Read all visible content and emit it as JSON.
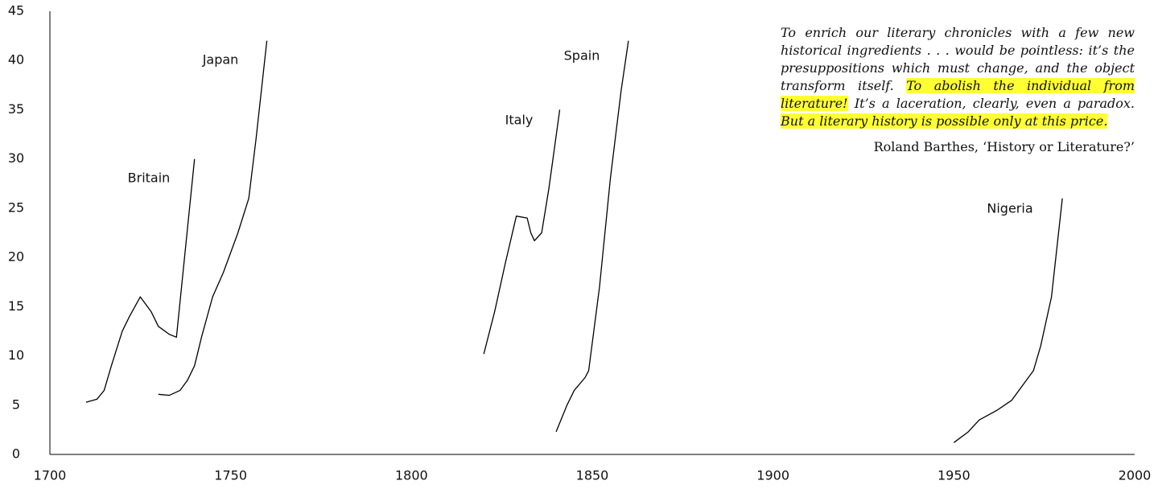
{
  "chart_data": {
    "type": "line",
    "xlim": [
      1700,
      2000
    ],
    "xticks": [
      1700,
      1750,
      1800,
      1850,
      1900,
      1950,
      2000
    ],
    "ylim": [
      0,
      45
    ],
    "yticks": [
      0,
      5,
      10,
      15,
      20,
      25,
      30,
      35,
      40,
      45
    ],
    "series": [
      {
        "name": "Britain",
        "color": "#000000",
        "x": [
          1710,
          1713,
          1715,
          1717,
          1720,
          1722,
          1725,
          1728,
          1730,
          1733,
          1735,
          1740
        ],
        "values": [
          5.3,
          5.6,
          6.5,
          9,
          12.5,
          14,
          16,
          14.5,
          13,
          12.2,
          11.9,
          30
        ]
      },
      {
        "name": "Japan",
        "color": "#000000",
        "x": [
          1730,
          1733,
          1736,
          1738,
          1740,
          1742,
          1745,
          1748,
          1752,
          1755,
          1757,
          1760
        ],
        "values": [
          6.1,
          6,
          6.5,
          7.5,
          9,
          12,
          16,
          18.5,
          22.5,
          26,
          32,
          42
        ]
      },
      {
        "name": "Italy",
        "color": "#000000",
        "x": [
          1820,
          1823,
          1826,
          1829,
          1832,
          1833,
          1834,
          1836,
          1838,
          1841
        ],
        "values": [
          10.2,
          14.5,
          19.5,
          24.2,
          24,
          22.5,
          21.7,
          22.5,
          27,
          35
        ]
      },
      {
        "name": "Spain",
        "color": "#000000",
        "x": [
          1840,
          1843,
          1845,
          1848,
          1849,
          1852,
          1855,
          1858,
          1860
        ],
        "values": [
          2.3,
          5,
          6.5,
          7.8,
          8.5,
          17,
          28,
          37,
          42
        ]
      },
      {
        "name": "Nigeria",
        "color": "#000000",
        "x": [
          1950,
          1954,
          1957,
          1962,
          1966,
          1969,
          1972,
          1974,
          1977,
          1980
        ],
        "values": [
          1.2,
          2.3,
          3.5,
          4.5,
          5.5,
          7,
          8.5,
          11,
          16,
          26
        ]
      }
    ],
    "quote": [
      {
        "text": "To enrich our literary chronicles with a few new historical ingredients . . . would be pointless: it’s the presuppositions which must change, and the object transform itself.",
        "highlight": false
      },
      {
        "text": "To abolish the individual from literature!",
        "highlight": true
      },
      {
        "text": "It’s a laceration, clearly, even a paradox.",
        "highlight": false
      },
      {
        "text": "But a literary history is possible only at this price.",
        "highlight": true
      }
    ],
    "attribution": "Roland Barthes, ‘History or Literature?’"
  }
}
